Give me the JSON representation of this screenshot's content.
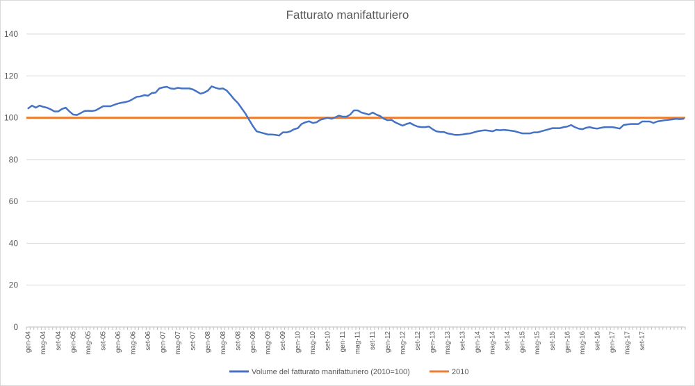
{
  "chart_data": {
    "type": "line",
    "title": "Fatturato manifatturiero",
    "xlabel": "",
    "ylabel": "",
    "ylim": [
      0,
      140
    ],
    "yticks": [
      0,
      20,
      40,
      60,
      80,
      100,
      120,
      140
    ],
    "grid": "horizontal",
    "legend_position": "bottom",
    "x_start": "gen-04",
    "x_end": "dic-17",
    "tick_labels": [
      "gen-04",
      "mag-04",
      "set-04",
      "gen-05",
      "mag-05",
      "set-05",
      "gen-06",
      "mag-06",
      "set-06",
      "gen-07",
      "mag-07",
      "set-07",
      "gen-08",
      "mag-08",
      "set-08",
      "gen-09",
      "mag-09",
      "set-09",
      "gen-10",
      "mag-10",
      "set-10",
      "gen-11",
      "mag-11",
      "set-11",
      "gen-12",
      "mag-12",
      "set-12",
      "gen-13",
      "mag-13",
      "set-13",
      "gen-14",
      "mag-14",
      "set-14",
      "gen-15",
      "mag-15",
      "set-15",
      "gen-16",
      "mag-16",
      "set-16",
      "gen-17",
      "mag-17",
      "set-17"
    ],
    "series": [
      {
        "name": "Volume del fatturato manifatturiero (2010=100)",
        "color": "#4472c4",
        "values": [
          104.5,
          105.8,
          104.8,
          105.8,
          105.2,
          104.8,
          104.0,
          103.0,
          103.0,
          104.2,
          104.8,
          103.0,
          101.5,
          101.3,
          102.2,
          103.2,
          103.3,
          103.2,
          103.5,
          104.5,
          105.5,
          105.5,
          105.5,
          106.2,
          106.8,
          107.2,
          107.5,
          108.0,
          109.0,
          110.0,
          110.2,
          110.8,
          110.5,
          111.8,
          112.0,
          114.0,
          114.5,
          114.8,
          114.0,
          113.8,
          114.3,
          114.0,
          114.0,
          114.0,
          113.5,
          112.5,
          111.5,
          112.0,
          113.0,
          115.0,
          114.3,
          113.8,
          114.0,
          113.0,
          111.0,
          108.8,
          107.0,
          104.5,
          102.0,
          99.0,
          96.0,
          93.5,
          93.0,
          92.5,
          92.0,
          92.0,
          91.8,
          91.5,
          93.0,
          93.0,
          93.5,
          94.5,
          95.0,
          97.0,
          97.8,
          98.3,
          97.5,
          97.8,
          99.0,
          99.5,
          100.0,
          99.5,
          100.2,
          101.0,
          100.5,
          100.5,
          101.5,
          103.5,
          103.5,
          102.5,
          102.0,
          101.5,
          102.5,
          101.5,
          100.8,
          99.5,
          98.8,
          99.0,
          97.8,
          97.0,
          96.2,
          97.0,
          97.5,
          96.5,
          95.8,
          95.5,
          95.5,
          95.8,
          94.5,
          93.5,
          93.2,
          93.2,
          92.5,
          92.2,
          91.8,
          91.8,
          92.0,
          92.3,
          92.5,
          93.0,
          93.5,
          93.8,
          94.0,
          93.8,
          93.5,
          94.2,
          94.0,
          94.2,
          94.0,
          93.8,
          93.5,
          93.0,
          92.5,
          92.5,
          92.5,
          93.0,
          93.0,
          93.5,
          94.0,
          94.5,
          95.0,
          95.0,
          95.0,
          95.5,
          95.8,
          96.5,
          95.5,
          94.8,
          94.5,
          95.2,
          95.5,
          95.0,
          94.8,
          95.2,
          95.5,
          95.5,
          95.5,
          95.2,
          94.8,
          96.5,
          96.8,
          97.0,
          97.0,
          97.0,
          98.2,
          98.2,
          98.2,
          97.5,
          98.2,
          98.5,
          98.8,
          99.0,
          99.2,
          99.5,
          99.3,
          99.5
        ]
      },
      {
        "name": "2010",
        "color": "#ed7d31",
        "constant": 100
      }
    ]
  }
}
